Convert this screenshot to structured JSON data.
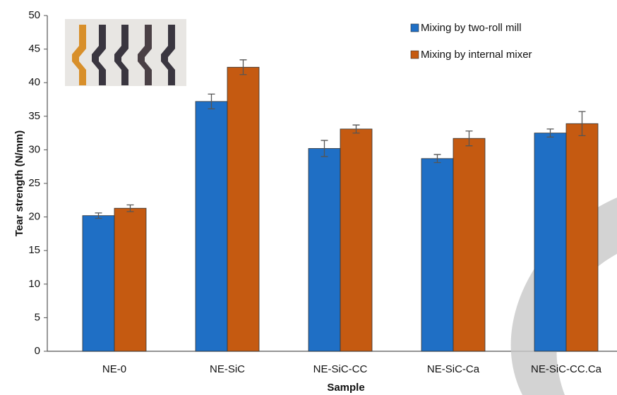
{
  "chart_data": {
    "type": "bar",
    "x_label": "Sample",
    "y_label": "Tear strength (N/mm)",
    "categories": [
      "NE-0",
      "NE-SiC",
      "NE-SiC-CC",
      "NE-SiC-Ca",
      "NE-SiC-CC.Ca"
    ],
    "series": [
      {
        "name": "Mixing by two-roll mill",
        "color": "#1f6fc5",
        "values": [
          20.2,
          37.2,
          30.2,
          28.7,
          32.5
        ],
        "errors": [
          0.4,
          1.1,
          1.2,
          0.6,
          0.6
        ]
      },
      {
        "name": "Mixing by internal mixer",
        "color": "#c55a11",
        "values": [
          21.3,
          42.3,
          33.1,
          31.7,
          33.9
        ],
        "errors": [
          0.5,
          1.1,
          0.6,
          1.1,
          1.8
        ]
      }
    ],
    "ylim": [
      0,
      50
    ],
    "yticks": [
      0,
      5,
      10,
      15,
      20,
      25,
      30,
      35,
      40,
      45,
      50
    ],
    "legend": "top-right",
    "grid": false
  }
}
